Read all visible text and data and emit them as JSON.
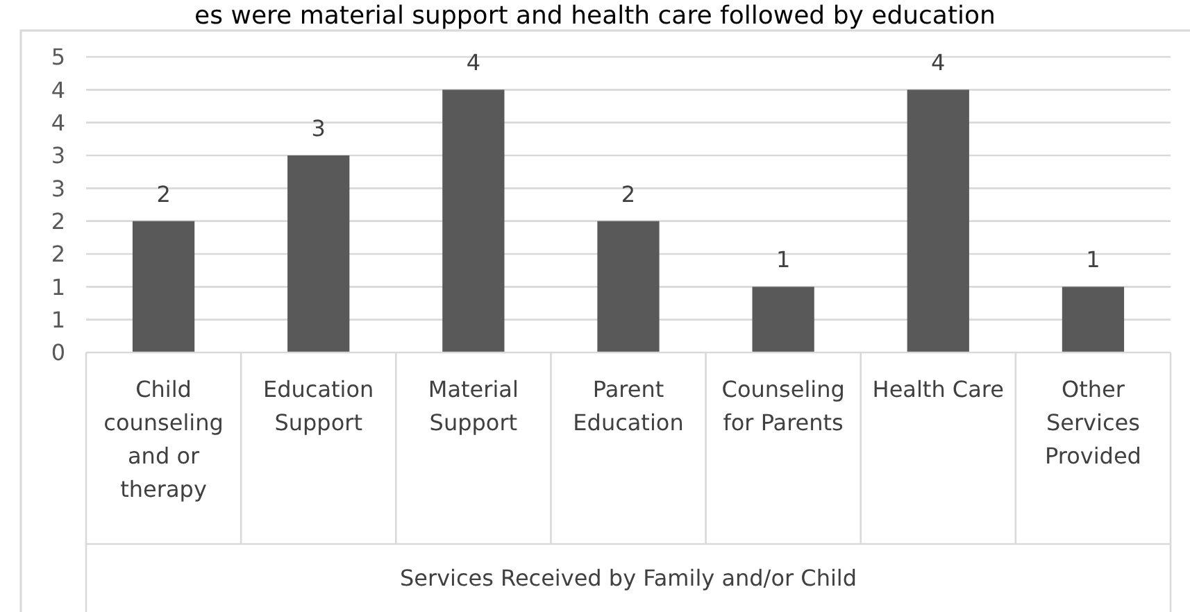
{
  "chart_data": {
    "type": "bar",
    "xlabel": "Services Received by Family and/or Child",
    "annotations": [
      "es were material support and health care followed by education"
    ],
    "categories": [
      "Child counseling and or therapy",
      "Education Support",
      "Material Support",
      "Parent Education",
      "Counseling for Parents",
      "Health Care",
      "Other Services Provided"
    ],
    "values": [
      2,
      3,
      4,
      2,
      1,
      4,
      1
    ],
    "color": "#595959",
    "data_labels": true,
    "ylim": [
      0,
      4.5
    ],
    "yticks": [
      0,
      {
        "value": 0.5,
        "label": "1"
      },
      1,
      {
        "value": 1.5,
        "label": "2"
      },
      2,
      {
        "value": 2.5,
        "label": "3"
      },
      3,
      {
        "value": 3.5,
        "label": "4"
      },
      4,
      {
        "value": 4.5,
        "label": "5"
      }
    ],
    "grid": "y"
  }
}
